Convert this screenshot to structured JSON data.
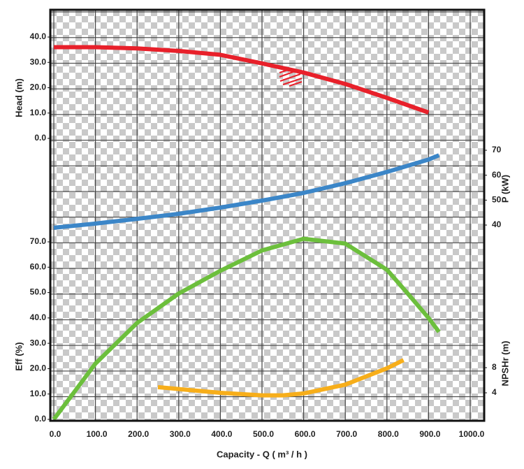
{
  "chart_data": {
    "type": "line",
    "x_label": "Capacity - Q ( m³ / h )",
    "xlim": [
      0,
      1000
    ],
    "xticks": [
      {
        "value": 0,
        "label": "0.0"
      },
      {
        "value": 100,
        "label": "100.0"
      },
      {
        "value": 200,
        "label": "200.0"
      },
      {
        "value": 300,
        "label": "300.0"
      },
      {
        "value": 400,
        "label": "400.0"
      },
      {
        "value": 500,
        "label": "500.0"
      },
      {
        "value": 600,
        "label": "600.0"
      },
      {
        "value": 700,
        "label": "700.0"
      },
      {
        "value": 800,
        "label": "800.0"
      },
      {
        "value": 900,
        "label": "900.0"
      },
      {
        "value": 1000,
        "label": "1000.0"
      }
    ],
    "grid": true,
    "axes": [
      {
        "label": "Head (m)",
        "side": "left",
        "ylim": [
          0,
          40
        ],
        "yticks": [
          {
            "value": 0,
            "label": "0.0"
          },
          {
            "value": 10,
            "label": "10.0"
          },
          {
            "value": 20,
            "label": "20.0"
          },
          {
            "value": 30,
            "label": "30.0"
          },
          {
            "value": 40,
            "label": "40.0"
          }
        ],
        "series": {
          "color": "#e8202a",
          "x": [
            0,
            100,
            200,
            300,
            400,
            500,
            600,
            700,
            800,
            900
          ],
          "values": [
            36,
            36,
            35.5,
            34.5,
            33,
            29.6,
            26,
            21.5,
            16,
            10.2
          ]
        }
      },
      {
        "label": "P (kW)",
        "side": "right",
        "ylim": [
          40,
          70
        ],
        "yticks": [
          40,
          50,
          60,
          70
        ],
        "series": {
          "color": "#3b86c8",
          "x": [
            0,
            100,
            200,
            300,
            400,
            500,
            600,
            700,
            800,
            900,
            925
          ],
          "values": [
            38.9,
            40.6,
            42.5,
            44.5,
            47,
            49.8,
            52.9,
            56.8,
            61.3,
            66.3,
            68
          ]
        }
      },
      {
        "label": "Eff (%)",
        "side": "left",
        "ylim": [
          0,
          70
        ],
        "yticks": [
          {
            "value": 0,
            "label": "0.0"
          },
          {
            "value": 10,
            "label": "10.0"
          },
          {
            "value": 20,
            "label": "20.0"
          },
          {
            "value": 30,
            "label": "30.0"
          },
          {
            "value": 40,
            "label": "40.0"
          },
          {
            "value": 50,
            "label": "50.0"
          },
          {
            "value": 60,
            "label": "60.0"
          },
          {
            "value": 70,
            "label": "70.0"
          }
        ],
        "series": {
          "color": "#6cbf3c",
          "x": [
            0,
            100,
            200,
            300,
            400,
            500,
            600,
            700,
            800,
            850,
            900,
            925
          ],
          "values": [
            0,
            22,
            38,
            49.6,
            58.6,
            66.6,
            71.2,
            69.3,
            59,
            49.6,
            40,
            34.5
          ]
        }
      },
      {
        "label": "NPSHr (m)",
        "side": "right",
        "ylim": [
          4,
          8
        ],
        "yticks": [
          4,
          8
        ],
        "series": {
          "color": "#f7ae1a",
          "x": [
            250,
            300,
            400,
            500,
            550,
            600,
            700,
            800,
            840
          ],
          "values": [
            4.9,
            4.6,
            4,
            3.6,
            3.6,
            3.9,
            5.3,
            7.9,
            9.2
          ]
        }
      }
    ]
  }
}
